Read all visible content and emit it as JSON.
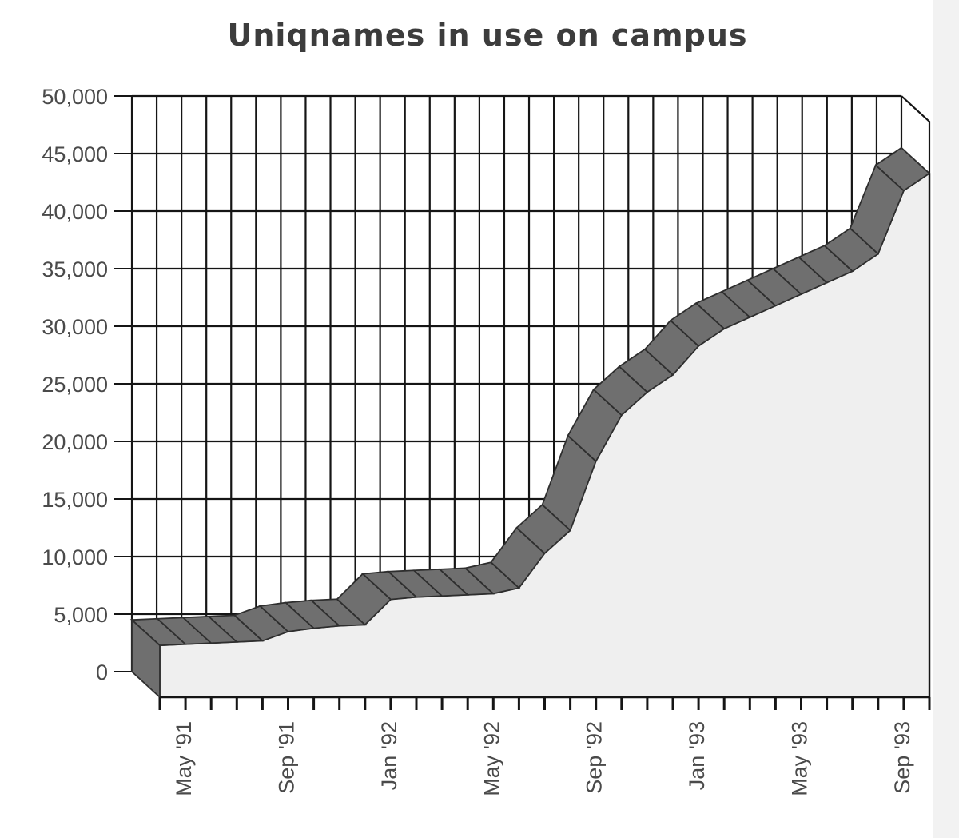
{
  "chart_data": {
    "type": "area",
    "title": "Uniqnames in use on campus",
    "xlabel": "",
    "ylabel": "",
    "ylim": [
      0,
      50000
    ],
    "y_ticks": [
      "0",
      "5,000",
      "10,000",
      "15,000",
      "20,000",
      "25,000",
      "30,000",
      "35,000",
      "40,000",
      "45,000",
      "50,000"
    ],
    "x_tick_labels": [
      "May '91",
      "Sep '91",
      "Jan '92",
      "May '92",
      "Sep '92",
      "Jan '93",
      "May '93",
      "Sep '93"
    ],
    "grid": true,
    "three_d": true,
    "x": [
      "Apr '91",
      "May '91",
      "Jun '91",
      "Jul '91",
      "Aug '91",
      "Sep '91",
      "Oct '91",
      "Nov '91",
      "Dec '91",
      "Jan '92",
      "Feb '92",
      "Mar '92",
      "Apr '92",
      "May '92",
      "Jun '92",
      "Jul '92",
      "Aug '92",
      "Sep '92",
      "Oct '92",
      "Nov '92",
      "Dec '92",
      "Jan '93",
      "Feb '93",
      "Mar '93",
      "Apr '93",
      "May '93",
      "Jun '93",
      "Jul '93",
      "Aug '93",
      "Sep '93",
      "Oct '93"
    ],
    "series": [
      {
        "values": [
          4500,
          4600,
          4700,
          4800,
          4900,
          5700,
          6000,
          6200,
          6300,
          8500,
          8700,
          8800,
          8900,
          9000,
          9500,
          12500,
          14500,
          20500,
          24500,
          26500,
          28000,
          30500,
          32000,
          33000,
          34000,
          35000,
          36000,
          37000,
          38500,
          44000,
          45500
        ]
      }
    ],
    "colors": {
      "ribbon": "#6f6f6f",
      "area": "#efefef",
      "grid": "#111111"
    }
  }
}
